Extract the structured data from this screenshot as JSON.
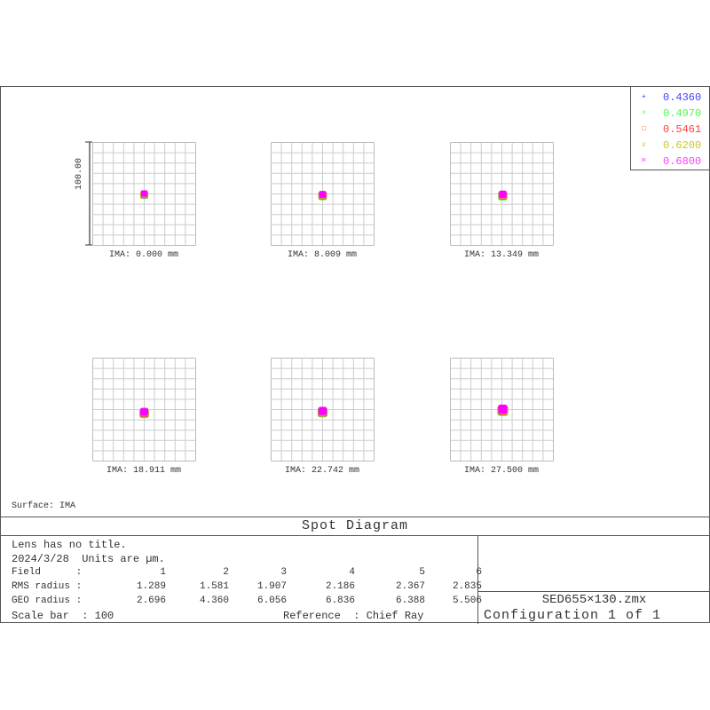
{
  "plots": [
    {
      "label": "IMA: 0.000 mm"
    },
    {
      "label": "IMA: 8.009 mm"
    },
    {
      "label": "IMA: 13.349 mm"
    },
    {
      "label": "IMA: 18.911 mm"
    },
    {
      "label": "IMA: 22.742 mm"
    },
    {
      "label": "IMA: 27.500 mm"
    }
  ],
  "scale_bar_label": "100.00",
  "legend": [
    {
      "marker": "+",
      "label": "0.4360",
      "color": "#4040ff"
    },
    {
      "marker": "×",
      "label": "0.4970",
      "color": "#40ff40"
    },
    {
      "marker": "□",
      "label": "0.5461",
      "color": "#ff4040"
    },
    {
      "marker": "x",
      "label": "0.6200",
      "color": "#c8c820"
    },
    {
      "marker": "⌘",
      "label": "0.6800",
      "color": "#ff40ff"
    }
  ],
  "surface": "Surface: IMA",
  "title": "Spot Diagram",
  "info": {
    "line1": "Lens has no title.",
    "line2": "2024/3/28  Units are µm.",
    "field_label": "Field      :",
    "fields": [
      "1",
      "2",
      "3",
      "4",
      "5",
      "6"
    ],
    "rms_label": "RMS radius :",
    "rms": [
      "1.289",
      "1.581",
      "1.907",
      "2.186",
      "2.367",
      "2.835"
    ],
    "geo_label": "GEO radius :",
    "geo": [
      "2.696",
      "4.360",
      "6.056",
      "6.836",
      "6.388",
      "5.506"
    ],
    "scale_bar": "Scale bar  : 100",
    "reference": "Reference  : Chief Ray"
  },
  "file": "SED655×130.zmx",
  "config": "Configuration 1 of 1"
}
